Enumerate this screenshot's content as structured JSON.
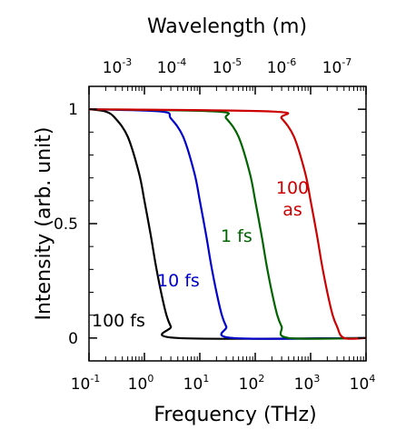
{
  "chart_data": {
    "type": "line",
    "xlabel": "Frequency (THz)",
    "ylabel": "Intensity (arb. unit)",
    "top_xlabel": "Wavelength (m)",
    "xscale": "log",
    "xlim": [
      0.1,
      10000
    ],
    "ylim": [
      -0.1,
      1.1
    ],
    "grid": false,
    "x_ticks": [
      {
        "base": "10",
        "exp": "-1"
      },
      {
        "base": "10",
        "exp": "0"
      },
      {
        "base": "10",
        "exp": "1"
      },
      {
        "base": "10",
        "exp": "2"
      },
      {
        "base": "10",
        "exp": "3"
      },
      {
        "base": "10",
        "exp": "4"
      }
    ],
    "top_ticks": [
      {
        "base": "10",
        "exp": "-3"
      },
      {
        "base": "10",
        "exp": "-4"
      },
      {
        "base": "10",
        "exp": "-5"
      },
      {
        "base": "10",
        "exp": "-6"
      },
      {
        "base": "10",
        "exp": "-7"
      }
    ],
    "y_ticks": [
      {
        "label": "0",
        "value": 0
      },
      {
        "label": "0.5",
        "value": 0.5
      },
      {
        "label": "1",
        "value": 1
      }
    ],
    "series": [
      {
        "name": "100 fs",
        "color": "#000000",
        "points": [
          [
            0.1,
            1.0
          ],
          [
            0.2,
            0.99
          ],
          [
            0.3,
            0.96
          ],
          [
            0.5,
            0.88
          ],
          [
            0.8,
            0.72
          ],
          [
            1.0,
            0.6
          ],
          [
            1.3,
            0.45
          ],
          [
            1.6,
            0.32
          ],
          [
            2.0,
            0.2
          ],
          [
            2.5,
            0.1
          ],
          [
            3.0,
            0.05
          ],
          [
            4.0,
            0.0
          ],
          [
            10000,
            0.0
          ]
        ]
      },
      {
        "name": "10 fs",
        "color": "#0000cc",
        "points": [
          [
            0.1,
            1.0
          ],
          [
            2.0,
            0.99
          ],
          [
            3.0,
            0.96
          ],
          [
            5.0,
            0.88
          ],
          [
            8.0,
            0.72
          ],
          [
            10.0,
            0.6
          ],
          [
            13.0,
            0.45
          ],
          [
            16.0,
            0.32
          ],
          [
            20.0,
            0.2
          ],
          [
            25.0,
            0.1
          ],
          [
            30.0,
            0.05
          ],
          [
            40.0,
            0.0
          ],
          [
            10000,
            0.0
          ]
        ]
      },
      {
        "name": "1 fs",
        "color": "#006400",
        "points": [
          [
            0.1,
            1.0
          ],
          [
            20.0,
            0.99
          ],
          [
            30.0,
            0.96
          ],
          [
            50.0,
            0.88
          ],
          [
            80.0,
            0.72
          ],
          [
            100.0,
            0.6
          ],
          [
            130.0,
            0.45
          ],
          [
            160.0,
            0.32
          ],
          [
            200.0,
            0.2
          ],
          [
            250.0,
            0.1
          ],
          [
            300.0,
            0.05
          ],
          [
            400.0,
            0.0
          ],
          [
            10000,
            0.0
          ]
        ]
      },
      {
        "name": "100 as",
        "name_lines": [
          "100",
          "as"
        ],
        "color": "#cc0000",
        "points": [
          [
            0.1,
            1.0
          ],
          [
            200.0,
            0.99
          ],
          [
            300.0,
            0.96
          ],
          [
            500.0,
            0.88
          ],
          [
            800.0,
            0.72
          ],
          [
            1000.0,
            0.6
          ],
          [
            1300.0,
            0.45
          ],
          [
            1600.0,
            0.32
          ],
          [
            2000.0,
            0.2
          ],
          [
            2500.0,
            0.1
          ],
          [
            3000.0,
            0.05
          ],
          [
            4000.0,
            0.0
          ],
          [
            10000,
            0.0
          ]
        ]
      }
    ]
  }
}
